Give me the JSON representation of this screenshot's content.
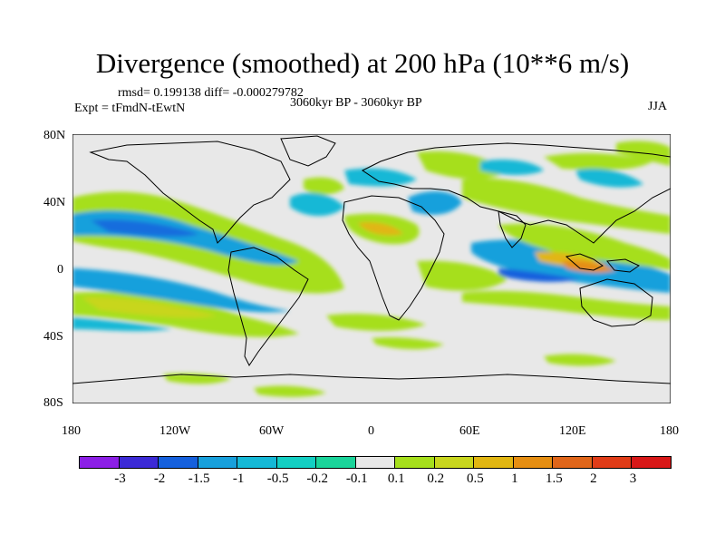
{
  "title": "Divergence (smoothed) at 200 hPa (10**6 m/s)",
  "stats": "rmsd= 0.199138 diff= -0.000279782",
  "experiment": "Expt = tFmdN-tEwtN",
  "period": "3060kyr BP - 3060kyr BP",
  "season": "JJA",
  "lat_ticks": [
    "80N",
    "40N",
    "0",
    "40S",
    "80S"
  ],
  "lon_ticks": [
    "180",
    "120W",
    "60W",
    "0",
    "60E",
    "120E",
    "180"
  ],
  "colorbar": {
    "labels": [
      "-3",
      "-2",
      "-1.5",
      "-1",
      "-0.5",
      "-0.2",
      "-0.1",
      "0.1",
      "0.2",
      "0.5",
      "1",
      "1.5",
      "2",
      "3"
    ],
    "colors": [
      "#8c1fe6",
      "#3c2ad6",
      "#1560dd",
      "#18a0dc",
      "#15b8d6",
      "#13cfc3",
      "#1ad49a",
      "#e8e8e8",
      "#a6df1c",
      "#c8d61e",
      "#e1b612",
      "#e58e12",
      "#e0661a",
      "#e03c18",
      "#d81818"
    ]
  },
  "colors": {
    "land_line": "#000000",
    "neutral": "#e8e8e8"
  }
}
